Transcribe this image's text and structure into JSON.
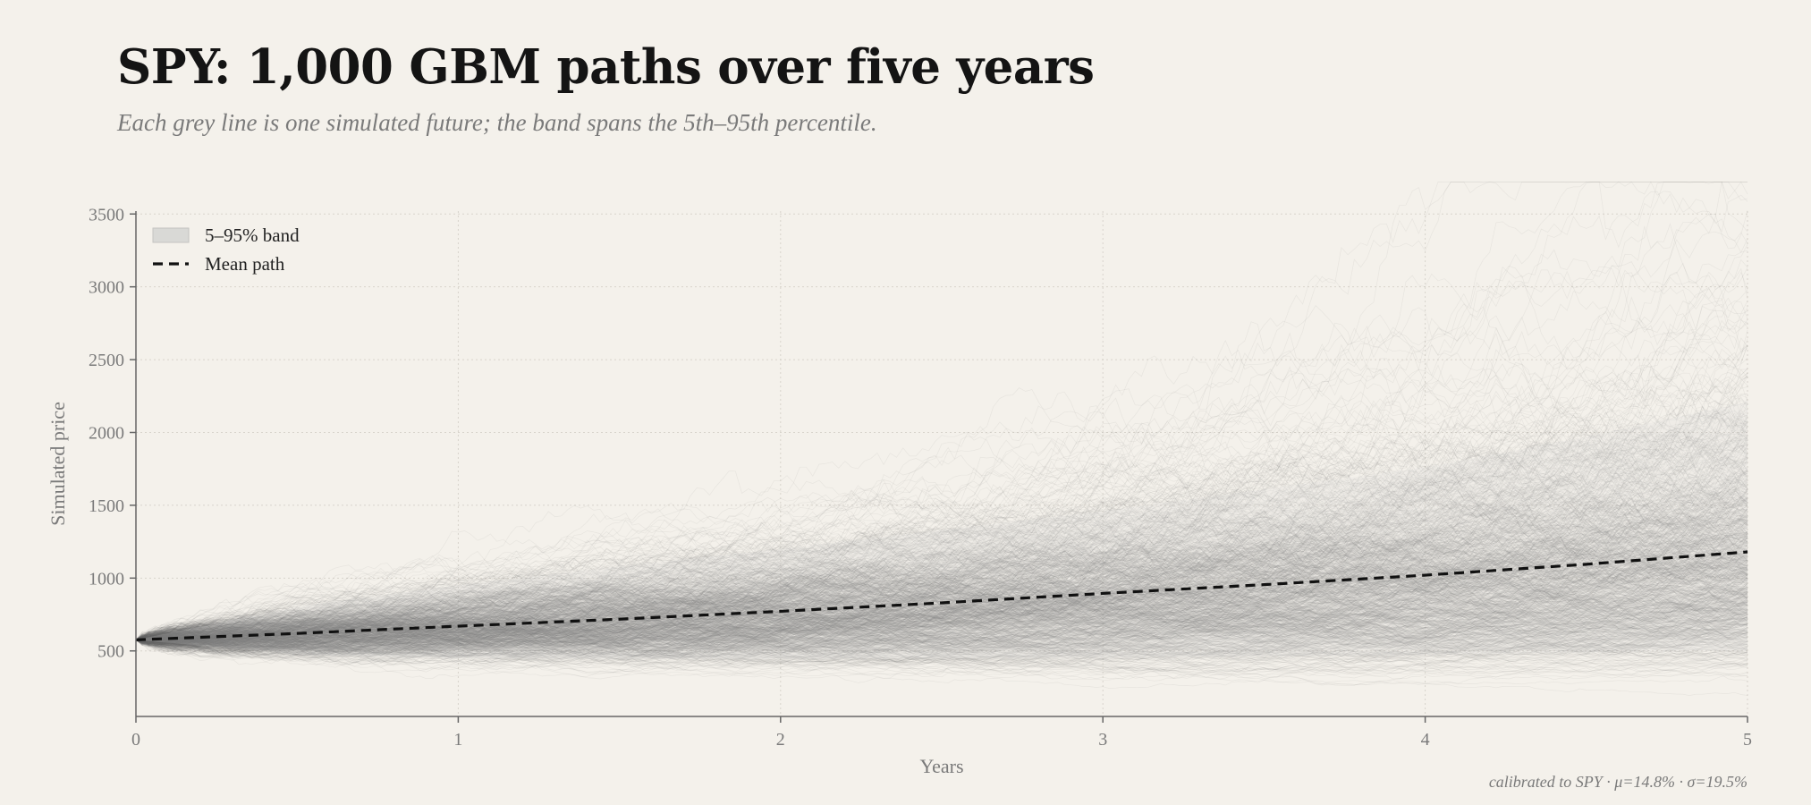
{
  "header": {
    "title": "SPY: 1,000 GBM paths over five years",
    "subtitle": "Each grey line is one simulated future; the band spans the 5th–95th percentile."
  },
  "footnote": "calibrated to SPY  ·  μ=14.8%  ·  σ=19.5%",
  "chart_data": {
    "type": "line",
    "xlabel": "Years",
    "ylabel": "Simulated price",
    "xlim": [
      0,
      5
    ],
    "ylim": [
      50,
      3520
    ],
    "x_ticks": [
      0,
      1,
      2,
      3,
      4,
      5
    ],
    "y_ticks": [
      500,
      1000,
      1500,
      2000,
      2500,
      3000,
      3500
    ],
    "grid": true,
    "legend_position": "top-left",
    "num_paths": 1000,
    "start_price": 576,
    "mu": 0.148,
    "sigma": 0.195,
    "series": [
      {
        "name": "Mean path",
        "x": [
          0,
          0.5,
          1,
          1.5,
          2,
          2.5,
          3,
          3.5,
          4,
          4.5,
          5
        ],
        "values": [
          576,
          620,
          670,
          718,
          772,
          830,
          895,
          955,
          1020,
          1095,
          1180
        ]
      },
      {
        "name": "5–95% band",
        "x": [
          0,
          0.5,
          1,
          1.5,
          2,
          2.5,
          3,
          3.5,
          4,
          4.5,
          5
        ],
        "lower": [
          576,
          475,
          450,
          445,
          445,
          450,
          455,
          465,
          475,
          490,
          500
        ],
        "upper": [
          576,
          805,
          950,
          1080,
          1200,
          1330,
          1460,
          1610,
          1760,
          1970,
          2210
        ]
      }
    ],
    "colors": {
      "paths": "#6e6e6e",
      "band": "#d9d9d6",
      "mean": "#111111",
      "axis": "#666666",
      "grid": "#d8d4cc"
    }
  }
}
